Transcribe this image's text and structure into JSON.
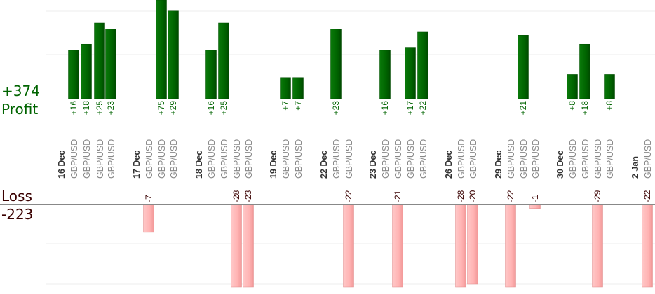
{
  "summary": {
    "profit_total": "+374",
    "profit_label": "Profit",
    "loss_label": "Loss",
    "loss_total": "-223"
  },
  "colors": {
    "profit": "#006400",
    "loss": "#ffb3b3",
    "grid": "#eeeeee",
    "axis": "#888888"
  },
  "chart_data": {
    "type": "bar",
    "title": "",
    "xlabel": "",
    "ylabel": "",
    "profit_ylim": [
      0,
      25
    ],
    "loss_ylim": [
      0,
      20
    ],
    "bars": [
      {
        "date": "16 Dec",
        "symbol": "GBP/USD",
        "value": 16,
        "label": "+16"
      },
      {
        "date": "",
        "symbol": "GBP/USD",
        "value": 18,
        "label": "+18"
      },
      {
        "date": "",
        "symbol": "GBP/USD",
        "value": 25,
        "label": "+25"
      },
      {
        "date": "",
        "symbol": "GBP/USD",
        "value": 23,
        "label": "+23"
      },
      {
        "date": "17 Dec",
        "symbol": "GBP/USD",
        "value": -7,
        "label": "-7"
      },
      {
        "date": "",
        "symbol": "GBP/USD",
        "value": 75,
        "label": "+75"
      },
      {
        "date": "",
        "symbol": "GBP/USD",
        "value": 29,
        "label": "+29"
      },
      {
        "date": "18 Dec",
        "symbol": "GBP/USD",
        "value": 16,
        "label": "+16"
      },
      {
        "date": "",
        "symbol": "GBP/USD",
        "value": 25,
        "label": "+25"
      },
      {
        "date": "",
        "symbol": "GBP/USD",
        "value": -28,
        "label": "-28"
      },
      {
        "date": "",
        "symbol": "GBP/USD",
        "value": -23,
        "label": "-23"
      },
      {
        "date": "19 Dec",
        "symbol": "GBP/USD",
        "value": 7,
        "label": "+7"
      },
      {
        "date": "",
        "symbol": "GBP/USD",
        "value": 7,
        "label": "+7"
      },
      {
        "date": "22 Dec",
        "symbol": "GBP/USD",
        "value": 23,
        "label": "+23"
      },
      {
        "date": "",
        "symbol": "GBP/USD",
        "value": -22,
        "label": "-22"
      },
      {
        "date": "23 Dec",
        "symbol": "GBP/USD",
        "value": 16,
        "label": "+16"
      },
      {
        "date": "",
        "symbol": "GBP/USD",
        "value": -21,
        "label": "-21"
      },
      {
        "date": "",
        "symbol": "GBP/USD",
        "value": 17,
        "label": "+17"
      },
      {
        "date": "",
        "symbol": "GBP/USD",
        "value": 22,
        "label": "+22"
      },
      {
        "date": "26 Dec",
        "symbol": "GBP/USD",
        "value": -28,
        "label": "-28"
      },
      {
        "date": "",
        "symbol": "GBP/USD",
        "value": -20,
        "label": "-20"
      },
      {
        "date": "29 Dec",
        "symbol": "GBP/USD",
        "value": -22,
        "label": "-22"
      },
      {
        "date": "",
        "symbol": "GBP/USD",
        "value": 21,
        "label": "+21"
      },
      {
        "date": "",
        "symbol": "GBP/USD",
        "value": -1,
        "label": "-1"
      },
      {
        "date": "30 Dec",
        "symbol": "GBP/USD",
        "value": 8,
        "label": "+8"
      },
      {
        "date": "",
        "symbol": "GBP/USD",
        "value": 18,
        "label": "+18"
      },
      {
        "date": "",
        "symbol": "GBP/USD",
        "value": -29,
        "label": "-29"
      },
      {
        "date": "",
        "symbol": "GBP/USD",
        "value": 8,
        "label": "+8"
      },
      {
        "date": "2 Jan",
        "symbol": "GBP/USD",
        "value": -22,
        "label": "-22"
      }
    ]
  }
}
